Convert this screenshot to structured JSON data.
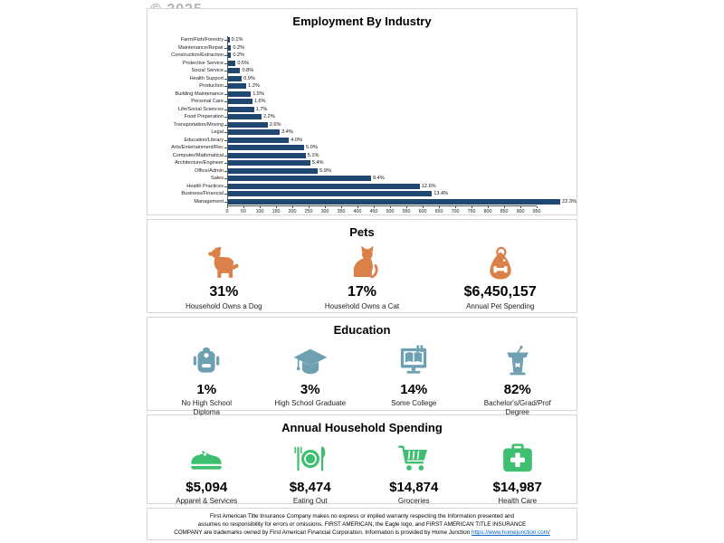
{
  "watermark": "© 2025",
  "colors": {
    "bar_navy": "#1E4872",
    "pets_orange": "#DC804A",
    "education_teal": "#6FA0B2",
    "spending_green": "#3EBE6F",
    "link_blue": "#0563C1"
  },
  "chart_data": {
    "type": "bar",
    "orientation": "horizontal",
    "title": "Employment By Industry",
    "categories": [
      "Farm/Fish/Forestry",
      "Maintenance/Repair",
      "Construction/Extraction",
      "Protective Service",
      "Social Service",
      "Health Support",
      "Production",
      "Building Maintenance",
      "Personal Care",
      "Life/Social Sciences",
      "Food Preperation",
      "Transportation/Moving",
      "Legal",
      "Education/Library",
      "Arts/Entertainment/Rec",
      "Computer/Mathmatical",
      "Architecture/Engineer",
      "Office/Admin",
      "Sales",
      "Health Practices",
      "Business/Financial",
      "Management"
    ],
    "values_percent": [
      0.1,
      0.2,
      0.2,
      0.5,
      0.8,
      0.9,
      1.2,
      1.5,
      1.6,
      1.7,
      2.2,
      2.6,
      3.4,
      4.0,
      5.0,
      5.1,
      5.4,
      5.9,
      9.4,
      12.6,
      13.4,
      22.3
    ],
    "value_labels": [
      "0.1%",
      "0.2%",
      "0.2%",
      "0.5%",
      "0.8%",
      "0.9%",
      "1.2%",
      "1.5%",
      "1.6%",
      "1.7%",
      "2.2%",
      "2.6%",
      "3.4%",
      "4.0%",
      "5.0%",
      "5.1%",
      "5.4%",
      "5.9%",
      "9.4%",
      "12.6%",
      "13.4%",
      "22.3%"
    ],
    "x_ticks": [
      0,
      50,
      100,
      150,
      200,
      250,
      300,
      350,
      400,
      450,
      500,
      550,
      600,
      650,
      700,
      750,
      800,
      850,
      900,
      950
    ],
    "xlim": [
      0,
      950
    ],
    "ylabel": "",
    "xlabel": "",
    "legend": "none",
    "grid": "off"
  },
  "pets": {
    "title": "Pets",
    "items": [
      {
        "icon": "dog-icon",
        "value": "31%",
        "label": "Household Owns a Dog"
      },
      {
        "icon": "cat-icon",
        "value": "17%",
        "label": "Household Owns a Cat"
      },
      {
        "icon": "pet-food-bag-icon",
        "value": "$6,450,157",
        "label": "Annual Pet Spending"
      }
    ]
  },
  "education": {
    "title": "Education",
    "items": [
      {
        "icon": "backpack-icon",
        "value": "1%",
        "label": "No High School Diploma"
      },
      {
        "icon": "graduation-cap-icon",
        "value": "3%",
        "label": "High School Graduate"
      },
      {
        "icon": "online-course-icon",
        "value": "14%",
        "label": "Some College"
      },
      {
        "icon": "lectern-icon",
        "value": "82%",
        "label": "Bachelor's/Grad/Prof Degree"
      }
    ]
  },
  "spending": {
    "title": "Annual Household Spending",
    "items": [
      {
        "icon": "sneaker-icon",
        "value": "$5,094",
        "label": "Apparel & Services"
      },
      {
        "icon": "dining-plate-icon",
        "value": "$8,474",
        "label": "Eating Out"
      },
      {
        "icon": "shopping-cart-icon",
        "value": "$14,874",
        "label": "Groceries"
      },
      {
        "icon": "first-aid-kit-icon",
        "value": "$14,987",
        "label": "Health Care"
      }
    ]
  },
  "footer": {
    "lines": [
      "First American Title Insurance Company makes no express or implied warranty respecting the Information presented and",
      "assumes no responsibility for errors or omissions. FIRST AMERICAN, the Eagle logo, and FIRST AMERICAN TITLE INSURANCE",
      "COMPANY are trademarks owned by First American Financial Corporation. Information is provided by Home Junction"
    ],
    "link": "https://www.homejunction.com/"
  }
}
